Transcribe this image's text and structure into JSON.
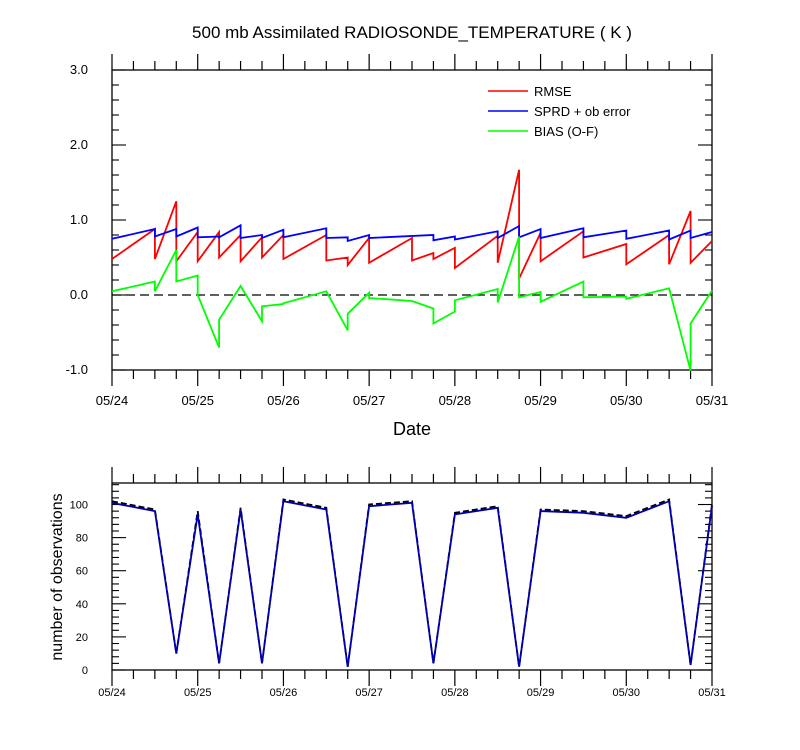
{
  "chart_data": [
    {
      "type": "line",
      "title": "500 mb Assimilated RADIOSONDE_TEMPERATURE ( K )",
      "xlabel": "Date",
      "ylabel": "",
      "xlim": [
        "05/24 00Z",
        "05/31 00Z"
      ],
      "ylim": [
        -1.0,
        3.0
      ],
      "x_tick_labels": [
        "05/24",
        "05/25",
        "05/26",
        "05/27",
        "05/28",
        "05/29",
        "05/30",
        "05/31"
      ],
      "y_ticks": [
        -1.0,
        0.0,
        1.0,
        2.0,
        3.0
      ],
      "y_tick_labels": [
        "-1.0",
        "0.0",
        "1.0",
        "2.0",
        "3.0"
      ],
      "reference_line": {
        "y": 0.0,
        "style": "dashed",
        "color": "#000000"
      },
      "legend_position": "top-right",
      "series": [
        {
          "name": "RMSE",
          "color": "#ff0000",
          "x": [
            "05/24 00Z",
            "05/24 12Z",
            "05/24 12Z",
            "05/24 18Z",
            "05/24 18Z",
            "05/25 00Z",
            "05/25 00Z",
            "05/25 06Z",
            "05/25 06Z",
            "05/25 12Z",
            "05/25 12Z",
            "05/25 18Z",
            "05/25 18Z",
            "05/26 00Z",
            "05/26 00Z",
            "05/26 12Z",
            "05/26 12Z",
            "05/26 18Z",
            "05/26 18Z",
            "05/27 00Z",
            "05/27 00Z",
            "05/27 12Z",
            "05/27 12Z",
            "05/27 18Z",
            "05/27 18Z",
            "05/28 00Z",
            "05/28 00Z",
            "05/28 12Z",
            "05/28 12Z",
            "05/28 18Z",
            "05/28 18Z",
            "05/29 00Z",
            "05/29 00Z",
            "05/29 12Z",
            "05/29 12Z",
            "05/30 00Z",
            "05/30 00Z",
            "05/30 12Z",
            "05/30 12Z",
            "05/30 18Z",
            "05/30 18Z",
            "05/31 00Z"
          ],
          "y": [
            0.48,
            0.88,
            0.48,
            1.25,
            0.45,
            0.84,
            0.45,
            0.84,
            0.5,
            0.8,
            0.45,
            0.77,
            0.5,
            0.8,
            0.48,
            0.8,
            0.46,
            0.5,
            0.4,
            0.76,
            0.43,
            0.76,
            0.46,
            0.56,
            0.48,
            0.63,
            0.36,
            0.79,
            0.43,
            1.67,
            0.22,
            0.83,
            0.45,
            0.85,
            0.5,
            0.68,
            0.41,
            0.8,
            0.41,
            1.12,
            0.43,
            0.72
          ]
        },
        {
          "name": "SPRD + ob error",
          "color": "#0000ff",
          "x": [
            "05/24 00Z",
            "05/24 12Z",
            "05/24 12Z",
            "05/24 18Z",
            "05/24 18Z",
            "05/25 00Z",
            "05/25 00Z",
            "05/25 06Z",
            "05/25 06Z",
            "05/25 12Z",
            "05/25 12Z",
            "05/25 18Z",
            "05/25 18Z",
            "05/26 00Z",
            "05/26 00Z",
            "05/26 12Z",
            "05/26 12Z",
            "05/26 18Z",
            "05/26 18Z",
            "05/27 00Z",
            "05/27 00Z",
            "05/27 18Z",
            "05/27 18Z",
            "05/28 00Z",
            "05/28 00Z",
            "05/28 12Z",
            "05/28 12Z",
            "05/28 18Z",
            "05/28 18Z",
            "05/29 00Z",
            "05/29 00Z",
            "05/29 12Z",
            "05/29 12Z",
            "05/30 00Z",
            "05/30 00Z",
            "05/30 12Z",
            "05/30 12Z",
            "05/30 18Z",
            "05/30 18Z",
            "05/31 00Z"
          ],
          "y": [
            0.75,
            0.88,
            0.78,
            0.88,
            0.78,
            0.9,
            0.77,
            0.78,
            0.77,
            0.93,
            0.76,
            0.8,
            0.76,
            0.87,
            0.77,
            0.89,
            0.76,
            0.77,
            0.72,
            0.8,
            0.76,
            0.8,
            0.73,
            0.78,
            0.74,
            0.85,
            0.76,
            0.92,
            0.77,
            0.88,
            0.76,
            0.89,
            0.77,
            0.86,
            0.75,
            0.86,
            0.74,
            0.86,
            0.76,
            0.84
          ]
        },
        {
          "name": "BIAS (O-F)",
          "color": "#00ff00",
          "x": [
            "05/24 00Z",
            "05/24 12Z",
            "05/24 12Z",
            "05/24 18Z",
            "05/24 18Z",
            "05/25 00Z",
            "05/25 00Z",
            "05/25 06Z",
            "05/25 06Z",
            "05/25 12Z",
            "05/25 18Z",
            "05/25 18Z",
            "05/26 00Z",
            "05/26 00Z",
            "05/26 12Z",
            "05/26 18Z",
            "05/26 18Z",
            "05/27 00Z",
            "05/27 00Z",
            "05/27 12Z",
            "05/27 18Z",
            "05/27 18Z",
            "05/28 00Z",
            "05/28 00Z",
            "05/28 12Z",
            "05/28 12Z",
            "05/28 18Z",
            "05/28 18Z",
            "05/29 00Z",
            "05/29 00Z",
            "05/29 12Z",
            "05/29 12Z",
            "05/30 00Z",
            "05/30 00Z",
            "05/30 12Z",
            "05/30 18Z",
            "05/30 18Z",
            "05/31 00Z"
          ],
          "y": [
            0.05,
            0.18,
            0.05,
            0.6,
            0.18,
            0.26,
            0.0,
            -0.7,
            -0.33,
            0.12,
            -0.35,
            -0.15,
            -0.12,
            -0.11,
            0.05,
            -0.47,
            -0.25,
            0.03,
            -0.04,
            -0.08,
            -0.18,
            -0.38,
            -0.22,
            -0.07,
            0.08,
            -0.1,
            0.78,
            -0.03,
            0.04,
            -0.09,
            0.18,
            -0.03,
            -0.02,
            -0.05,
            0.09,
            -1.01,
            -0.38,
            0.06
          ]
        }
      ]
    },
    {
      "type": "line",
      "title": "",
      "xlabel": "",
      "ylabel": "number of observations",
      "xlim": [
        "05/24 00Z",
        "05/31 00Z"
      ],
      "ylim": [
        0,
        113
      ],
      "x_tick_labels": [
        "05/24",
        "05/25",
        "05/26",
        "05/27",
        "05/28",
        "05/29",
        "05/30",
        "05/31"
      ],
      "y_ticks": [
        0,
        20,
        40,
        60,
        80,
        100
      ],
      "y_tick_labels": [
        "0",
        "20",
        "40",
        "60",
        "80",
        "100"
      ],
      "series": [
        {
          "style": "dashed",
          "color": "#000000",
          "x": [
            "05/24 00Z",
            "05/24 12Z",
            "05/24 18Z",
            "05/25 00Z",
            "05/25 06Z",
            "05/25 12Z",
            "05/25 18Z",
            "05/26 00Z",
            "05/26 12Z",
            "05/26 18Z",
            "05/27 00Z",
            "05/27 12Z",
            "05/27 18Z",
            "05/28 00Z",
            "05/28 12Z",
            "05/28 18Z",
            "05/29 00Z",
            "05/29 12Z",
            "05/30 00Z",
            "05/30 12Z",
            "05/30 18Z",
            "05/31 00Z"
          ],
          "y": [
            102,
            97,
            10,
            96,
            4,
            98,
            4,
            103,
            98,
            2,
            100,
            102,
            4,
            95,
            99,
            2,
            97,
            96,
            93,
            103,
            3,
            100
          ]
        },
        {
          "style": "solid",
          "color": "#0000aa",
          "x": [
            "05/24 00Z",
            "05/24 12Z",
            "05/24 18Z",
            "05/25 00Z",
            "05/25 06Z",
            "05/25 12Z",
            "05/25 18Z",
            "05/26 00Z",
            "05/26 12Z",
            "05/26 18Z",
            "05/27 00Z",
            "05/27 12Z",
            "05/27 18Z",
            "05/28 00Z",
            "05/28 12Z",
            "05/28 18Z",
            "05/29 00Z",
            "05/29 12Z",
            "05/30 00Z",
            "05/30 12Z",
            "05/30 18Z",
            "05/31 00Z"
          ],
          "y": [
            101,
            96,
            10,
            94,
            4,
            97,
            4,
            102,
            97,
            2,
            99,
            101,
            4,
            94,
            98,
            2,
            96,
            95,
            92,
            102,
            3,
            99
          ]
        }
      ]
    }
  ]
}
